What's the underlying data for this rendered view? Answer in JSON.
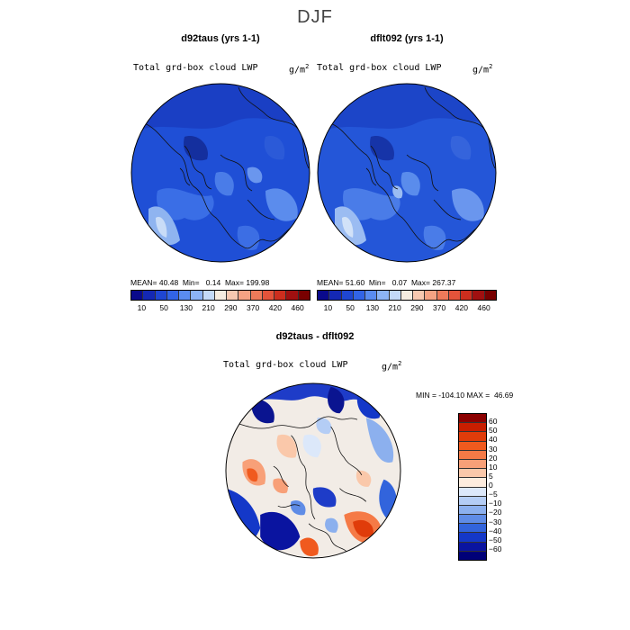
{
  "title": "DJF",
  "panels": [
    {
      "id": "left",
      "title": "d92taus (yrs 1-1)",
      "variable": "Total grd-box cloud LWP",
      "units_base": "g/m",
      "units_exp": "2",
      "mean_label": "MEAN=",
      "mean": "40.48",
      "min_label": "Min=",
      "min": "0.14",
      "max_label": "Max=",
      "max": "199.98"
    },
    {
      "id": "right",
      "title": "dflt092 (yrs 1-1)",
      "variable": "Total grd-box cloud LWP",
      "units_base": "g/m",
      "units_exp": "2",
      "mean_label": "MEAN=",
      "mean": "51.60",
      "min_label": "Min=",
      "min": "0.07",
      "max_label": "Max=",
      "max": "267.37"
    }
  ],
  "colorbar_top": {
    "colors": [
      "#0a0a8c",
      "#1428b4",
      "#1f46d2",
      "#3264e6",
      "#5a8cf0",
      "#8cb4f5",
      "#c3daf8",
      "#f5ece0",
      "#f7c8b0",
      "#f5a283",
      "#ee7a5a",
      "#e4533a",
      "#cd2e1e",
      "#a01010",
      "#780000"
    ],
    "tick_labels": [
      "10",
      "50",
      "130",
      "210",
      "290",
      "370",
      "420",
      "460"
    ]
  },
  "diff": {
    "title": "d92taus - dflt092",
    "variable": "Total grd-box cloud LWP",
    "units_base": "g/m",
    "units_exp": "2",
    "min_label": "MIN =",
    "min": "-104.10",
    "max_label": "MAX =",
    "max": "46.69"
  },
  "colorbar_diff": {
    "colors": [
      "#8b0000",
      "#c81e00",
      "#e03c0a",
      "#f05a1e",
      "#f57a46",
      "#f8a078",
      "#fac8aa",
      "#fdecde",
      "#dce8fa",
      "#b4cdf5",
      "#8cb0ee",
      "#5f8ce6",
      "#3264dc",
      "#1438c8",
      "#0a14a0",
      "#000078"
    ],
    "tick_labels": [
      "60",
      "50",
      "40",
      "30",
      "20",
      "10",
      "5",
      "0",
      "−5",
      "−10",
      "−20",
      "−30",
      "−40",
      "−50",
      "−60"
    ]
  },
  "colors": {
    "map_base_blue": "#1f4fd6",
    "map_dark_blue": "#102a9c",
    "map_light_blue": "#7fa8ea",
    "diff_base": "#f2ece6"
  }
}
